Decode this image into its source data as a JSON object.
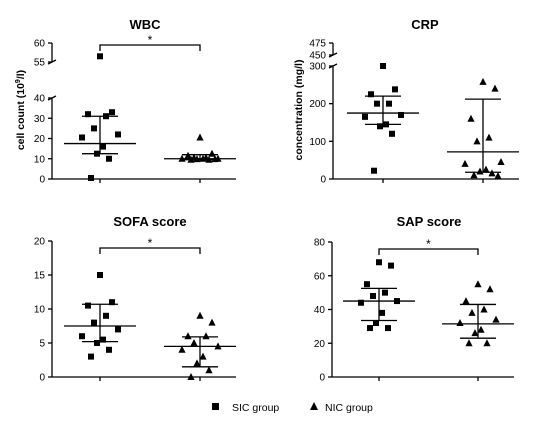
{
  "legend": [
    {
      "marker": "square",
      "label": "SIC group"
    },
    {
      "marker": "triangle",
      "label": "NIC group"
    }
  ],
  "chart_data": [
    {
      "type": "scatter",
      "title": "WBC",
      "ylabel_prefix": "cell count (10",
      "ylabel_sup": "9",
      "ylabel_suffix": "/l)",
      "ylim": [
        0,
        60
      ],
      "axis_break": [
        40,
        55
      ],
      "yticks": [
        0,
        10,
        20,
        30,
        40,
        55,
        60
      ],
      "significance": "*",
      "series": [
        {
          "name": "SIC group",
          "marker": "square",
          "values": [
            56.5,
            33,
            32,
            31,
            25,
            22,
            20.5,
            16,
            12.5,
            10,
            0.5
          ],
          "median": 17.5,
          "iqr": [
            12.5,
            31
          ]
        },
        {
          "name": "NIC group",
          "marker": "triangle",
          "values": [
            20.5,
            12.5,
            11.5,
            10.5,
            10.5,
            10,
            10,
            10,
            9.8,
            9.5,
            9.5,
            9.8
          ],
          "median": 10,
          "iqr": [
            9.5,
            12
          ]
        }
      ]
    },
    {
      "type": "scatter",
      "title": "CRP",
      "ylabel": "concentration (mg/l)",
      "ylim": [
        0,
        475
      ],
      "axis_break": [
        300,
        450
      ],
      "yticks": [
        0,
        100,
        200,
        300,
        450,
        475
      ],
      "significance": "",
      "series": [
        {
          "name": "SIC group",
          "marker": "square",
          "values": [
            335,
            238,
            225,
            200,
            200,
            170,
            165,
            145,
            140,
            120,
            22
          ],
          "median": 175,
          "iqr": [
            145,
            220
          ]
        },
        {
          "name": "NIC group",
          "marker": "triangle",
          "values": [
            258,
            240,
            160,
            110,
            100,
            45,
            40,
            25,
            20,
            15,
            10,
            8
          ],
          "median": 72,
          "iqr": [
            18,
            212
          ]
        }
      ]
    },
    {
      "type": "scatter",
      "title": "SOFA score",
      "ylabel": "",
      "ylim": [
        0,
        20
      ],
      "yticks": [
        0,
        5,
        10,
        15,
        20
      ],
      "significance": "*",
      "series": [
        {
          "name": "SIC group",
          "marker": "square",
          "values": [
            15,
            11,
            10.5,
            9,
            8,
            7,
            6,
            5.5,
            5,
            4,
            3
          ],
          "median": 7.5,
          "iqr": [
            5.2,
            10.7
          ]
        },
        {
          "name": "NIC group",
          "marker": "triangle",
          "values": [
            9,
            8,
            6,
            6,
            5,
            4.5,
            4,
            3,
            2,
            1,
            0
          ],
          "median": 4.5,
          "iqr": [
            1.5,
            5.9
          ]
        }
      ]
    },
    {
      "type": "scatter",
      "title": "SAP score",
      "ylabel": "",
      "ylim": [
        0,
        80
      ],
      "yticks": [
        0,
        20,
        40,
        60,
        80
      ],
      "significance": "*",
      "series": [
        {
          "name": "SIC group",
          "marker": "square",
          "values": [
            68,
            66,
            55,
            50,
            48,
            45,
            44,
            38,
            32,
            29,
            29
          ],
          "median": 45,
          "iqr": [
            33.5,
            52.5
          ]
        },
        {
          "name": "NIC group",
          "marker": "triangle",
          "values": [
            55,
            52,
            45,
            40,
            38,
            34,
            32,
            28,
            26,
            20,
            20
          ],
          "median": 31.5,
          "iqr": [
            23,
            43
          ]
        }
      ]
    }
  ]
}
